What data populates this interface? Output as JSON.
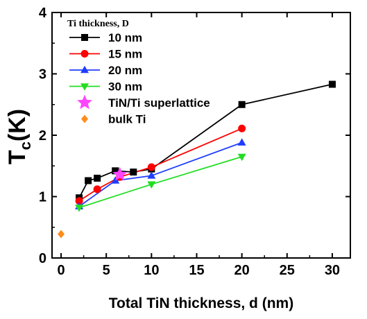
{
  "chart_data": {
    "type": "scatter",
    "xlabel": "Total TiN thickness, d (nm)",
    "ylabel_main": "T",
    "ylabel_sub": "c",
    "ylabel_unit": "(K)",
    "xlim": [
      -1,
      32
    ],
    "ylim": [
      0,
      4
    ],
    "xticks": [
      0,
      5,
      10,
      15,
      20,
      25,
      30
    ],
    "yticks": [
      0,
      1,
      2,
      3,
      4
    ],
    "legend_title": "Ti thickness, D",
    "legend_position": "top-left",
    "series": [
      {
        "name": "10 nm",
        "color": "#000000",
        "marker": "square",
        "connected": true,
        "x": [
          2,
          3,
          4,
          6,
          8,
          10,
          20,
          30
        ],
        "y": [
          0.98,
          1.26,
          1.3,
          1.42,
          1.4,
          1.45,
          2.5,
          2.83
        ]
      },
      {
        "name": "15 nm",
        "color": "#ff0000",
        "marker": "circle",
        "connected": true,
        "x": [
          2,
          4,
          6.5,
          10,
          20
        ],
        "y": [
          0.93,
          1.12,
          1.32,
          1.48,
          2.11
        ]
      },
      {
        "name": "20 nm",
        "color": "#1f3dff",
        "marker": "triangle-up",
        "connected": true,
        "x": [
          2,
          6,
          10,
          20
        ],
        "y": [
          0.84,
          1.26,
          1.34,
          1.88
        ]
      },
      {
        "name": "30 nm",
        "color": "#22dd22",
        "marker": "triangle-down",
        "connected": true,
        "x": [
          2,
          10,
          20
        ],
        "y": [
          0.82,
          1.2,
          1.65
        ]
      },
      {
        "name": "TiN/Ti superlattice",
        "color": "#ff44ff",
        "marker": "star",
        "connected": false,
        "x": [
          6.5
        ],
        "y": [
          1.36
        ]
      },
      {
        "name": "bulk Ti",
        "color": "#ff8c1a",
        "marker": "diamond",
        "connected": false,
        "x": [
          0
        ],
        "y": [
          0.39
        ]
      }
    ]
  }
}
